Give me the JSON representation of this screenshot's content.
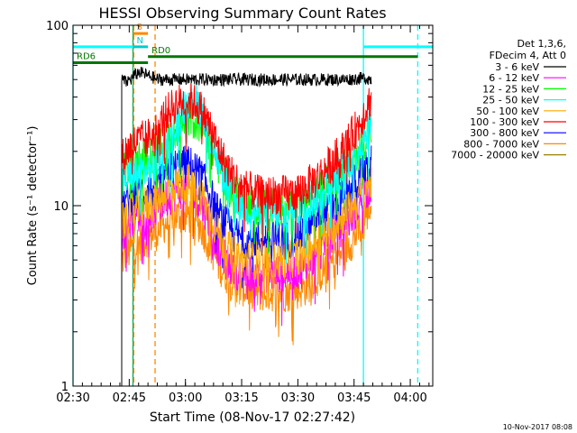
{
  "chart_data": {
    "type": "line",
    "title": "HESSI Observing Summary Count Rates",
    "xlabel": "Start Time (08-Nov-17 02:27:42)",
    "ylabel": "Count Rate (s⁻¹ detector⁻¹)",
    "y_scale": "log",
    "ylim": [
      1,
      100
    ],
    "xlim_minutes": [
      2.3,
      98.3
    ],
    "x_ticks": [
      {
        "label": "02:30",
        "t": 2.3
      },
      {
        "label": "02:45",
        "t": 17.3
      },
      {
        "label": "03:00",
        "t": 32.3
      },
      {
        "label": "03:15",
        "t": 47.3
      },
      {
        "label": "03:30",
        "t": 62.3
      },
      {
        "label": "03:45",
        "t": 77.3
      },
      {
        "label": "04:00",
        "t": 92.3
      }
    ],
    "y_ticks": [
      {
        "label": "1",
        "v": 1
      },
      {
        "label": "10",
        "v": 10
      },
      {
        "label": "100",
        "v": 100
      }
    ],
    "legend_header": [
      "Det 1,3,6,",
      "FDecim 4, Att 0"
    ],
    "legend_position": "right",
    "series": [
      {
        "name": "3 - 6 keV",
        "color": "#000000",
        "t": [
          15.3,
          15.8,
          16.5,
          17.3,
          17.8,
          18.3,
          20,
          25,
          30,
          35,
          40,
          45,
          50,
          55,
          60,
          65,
          70,
          75,
          80,
          82.0
        ],
        "values": [
          50,
          50,
          48,
          50,
          50,
          52,
          55,
          50,
          50,
          50,
          50,
          50,
          50,
          50,
          50,
          50,
          50,
          50,
          51,
          50
        ]
      },
      {
        "name": "6 - 12 keV",
        "color": "#ff00ff",
        "t": [
          15.3,
          16.5,
          17.3,
          18.5,
          24,
          27,
          30,
          33,
          35,
          37,
          39,
          41,
          43,
          45,
          48,
          52,
          56,
          60,
          64,
          68,
          72,
          75,
          77,
          79,
          80,
          81,
          82.0
        ],
        "values": [
          7,
          7.5,
          8,
          9,
          9.5,
          11,
          12,
          12.5,
          11.5,
          10,
          8,
          6,
          5,
          4.5,
          4.3,
          4.2,
          4.2,
          4.3,
          4.5,
          5.5,
          7,
          8,
          9,
          10.5,
          12,
          12.5,
          13
        ]
      },
      {
        "name": "12 - 25 keV",
        "color": "#00ff00",
        "t": [
          15.3,
          16.5,
          17.3,
          18.5,
          24,
          27,
          30,
          33,
          35,
          37,
          39,
          41,
          43,
          45,
          48,
          52,
          56,
          60,
          64,
          68,
          72,
          75,
          77,
          79,
          80,
          81,
          82.0
        ],
        "values": [
          15,
          16,
          17,
          18,
          19,
          22,
          27,
          31,
          30,
          27,
          22,
          17,
          14,
          12,
          10.5,
          10,
          10,
          10,
          10.5,
          12,
          14.5,
          16.5,
          19,
          21,
          23,
          25,
          27
        ]
      },
      {
        "name": "25 - 50 keV",
        "color": "#00ffff",
        "t": [
          15.3,
          16.5,
          17.3,
          18.5,
          24,
          27,
          30,
          33,
          35,
          37,
          39,
          41,
          43,
          45,
          48,
          52,
          56,
          60,
          64,
          68,
          72,
          75,
          77,
          79,
          80,
          81,
          82.0
        ],
        "values": [
          13,
          14,
          14.5,
          15,
          16,
          20,
          28,
          40,
          38,
          33,
          24,
          18,
          14,
          11.5,
          10,
          9,
          9,
          9,
          10,
          11.5,
          14,
          16,
          19,
          22,
          25,
          27,
          30
        ]
      },
      {
        "name": "50 - 100 keV",
        "color": "#ffaa00",
        "t": [
          15.3,
          16.5,
          17.3,
          18.5,
          24,
          27,
          30,
          33,
          35,
          37,
          39,
          41,
          43,
          45,
          48,
          52,
          56,
          60,
          64,
          68,
          72,
          75,
          77,
          79,
          80,
          81,
          82.0
        ],
        "values": [
          8,
          8.5,
          9,
          9.5,
          10.5,
          12,
          13,
          13.5,
          12.5,
          11,
          9,
          7,
          6,
          5.5,
          5,
          5,
          5,
          5,
          5.5,
          6.5,
          8,
          9,
          10,
          11.5,
          12.5,
          13,
          14
        ]
      },
      {
        "name": "100 - 300 keV",
        "color": "#ff0000",
        "t": [
          15.3,
          16.5,
          17.3,
          18.5,
          24,
          27,
          30,
          33,
          35,
          37,
          39,
          41,
          43,
          45,
          48,
          52,
          56,
          60,
          64,
          68,
          72,
          75,
          77,
          79,
          80,
          81,
          82.0
        ],
        "values": [
          18,
          20,
          21,
          22,
          25,
          32,
          37,
          38,
          37,
          33,
          27,
          21,
          17,
          14.5,
          12.5,
          11.5,
          11.5,
          11.5,
          12.5,
          14.5,
          18,
          21,
          25,
          29,
          33,
          36,
          40
        ]
      },
      {
        "name": "300 - 800 keV",
        "color": "#0000ff",
        "t": [
          15.3,
          16.5,
          17.3,
          18.5,
          24,
          27,
          30,
          33,
          35,
          37,
          39,
          41,
          43,
          45,
          48,
          52,
          56,
          60,
          64,
          68,
          72,
          75,
          77,
          79,
          80,
          81,
          82.0
        ],
        "values": [
          10,
          10.5,
          11,
          11.5,
          12.5,
          15,
          16.5,
          17,
          16,
          14,
          11.5,
          9,
          8,
          7,
          6.5,
          6.5,
          6.5,
          6.5,
          7,
          8.5,
          10,
          11.5,
          13,
          14.5,
          15.5,
          16,
          17
        ]
      },
      {
        "name": "800 - 7000 keV",
        "color": "#ff8800",
        "t": [
          15.3,
          16.5,
          17.3,
          18.5,
          24,
          27,
          30,
          33,
          35,
          37,
          39,
          41,
          43,
          45,
          48,
          52,
          56,
          60,
          64,
          68,
          72,
          75,
          77,
          79,
          80,
          81,
          82.0
        ],
        "values": [
          5,
          5.3,
          5.6,
          6,
          7,
          8,
          8.8,
          9,
          8.5,
          7.3,
          6,
          4.8,
          4.2,
          3.8,
          3.5,
          3.3,
          3.3,
          3.3,
          3.5,
          4.2,
          5,
          5.8,
          6.5,
          7.5,
          8.5,
          9.3,
          10
        ]
      },
      {
        "name": "7000 - 20000 keV",
        "color": "#998000",
        "t": [],
        "values": []
      }
    ],
    "annotations": [
      {
        "label": "S",
        "color": "#ff8800",
        "t_start": 18.3,
        "t_end": 22.3,
        "level": 90
      },
      {
        "label": "N",
        "color": "#00cccc",
        "t_start": 18.3,
        "t_end": 22.3,
        "level": 76
      },
      {
        "label": "RD0",
        "color": "#007700",
        "t_start": 22.3,
        "t_end": 94.3,
        "level": 67
      },
      {
        "label": "RD6",
        "color": "#007700",
        "t_start": 2.3,
        "t_end": 22.3,
        "level": 62
      }
    ],
    "vertical_markers": [
      {
        "t": 2.3,
        "color": "#00ffff",
        "style": "solid"
      },
      {
        "t": 18.3,
        "color": "#00aa55",
        "style": "solid"
      },
      {
        "t": 18.5,
        "color": "#ff8800",
        "style": "dashed"
      },
      {
        "t": 24.2,
        "color": "#ff8800",
        "style": "dashed"
      },
      {
        "t": 79.8,
        "color": "#00ffff",
        "style": "solid"
      },
      {
        "t": 94.3,
        "color": "#00ffff",
        "style": "dashed"
      }
    ]
  },
  "footer": {
    "timestamp": "10-Nov-2017 08:08"
  }
}
